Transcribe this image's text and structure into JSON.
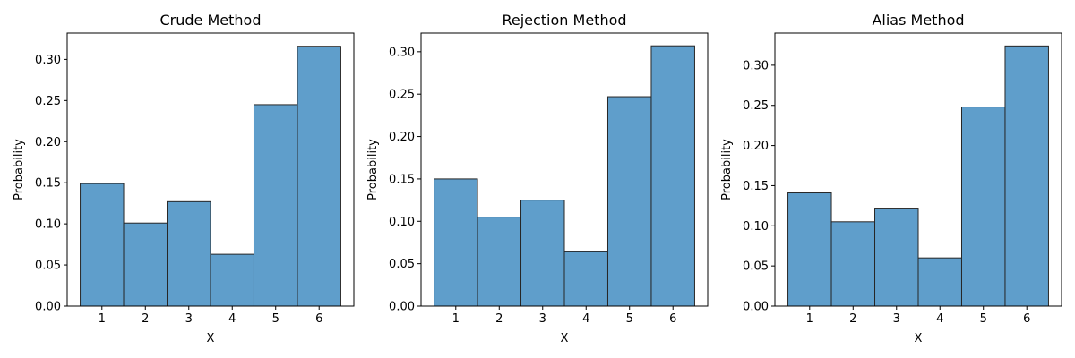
{
  "chart_data": [
    {
      "type": "bar",
      "title": "Crude Method",
      "xlabel": "X",
      "ylabel": "Probability",
      "categories": [
        "1",
        "2",
        "3",
        "4",
        "5",
        "6"
      ],
      "values": [
        0.149,
        0.101,
        0.127,
        0.063,
        0.245,
        0.316
      ],
      "ylim": [
        0,
        0.332
      ],
      "yticks": [
        "0.00",
        "0.05",
        "0.10",
        "0.15",
        "0.20",
        "0.25",
        "0.30"
      ],
      "grid": false,
      "bar_color": "#5f9ecb",
      "edge_color": "#262626"
    },
    {
      "type": "bar",
      "title": "Rejection Method",
      "xlabel": "X",
      "ylabel": "Probability",
      "categories": [
        "1",
        "2",
        "3",
        "4",
        "5",
        "6"
      ],
      "values": [
        0.15,
        0.105,
        0.125,
        0.064,
        0.247,
        0.307
      ],
      "ylim": [
        0,
        0.322
      ],
      "yticks": [
        "0.00",
        "0.05",
        "0.10",
        "0.15",
        "0.20",
        "0.25",
        "0.30"
      ],
      "grid": false,
      "bar_color": "#5f9ecb",
      "edge_color": "#262626"
    },
    {
      "type": "bar",
      "title": "Alias Method",
      "xlabel": "X",
      "ylabel": "Probability",
      "categories": [
        "1",
        "2",
        "3",
        "4",
        "5",
        "6"
      ],
      "values": [
        0.141,
        0.105,
        0.122,
        0.06,
        0.248,
        0.324
      ],
      "ylim": [
        0,
        0.34
      ],
      "yticks": [
        "0.00",
        "0.05",
        "0.10",
        "0.15",
        "0.20",
        "0.25",
        "0.30"
      ],
      "grid": false,
      "bar_color": "#5f9ecb",
      "edge_color": "#262626"
    }
  ]
}
